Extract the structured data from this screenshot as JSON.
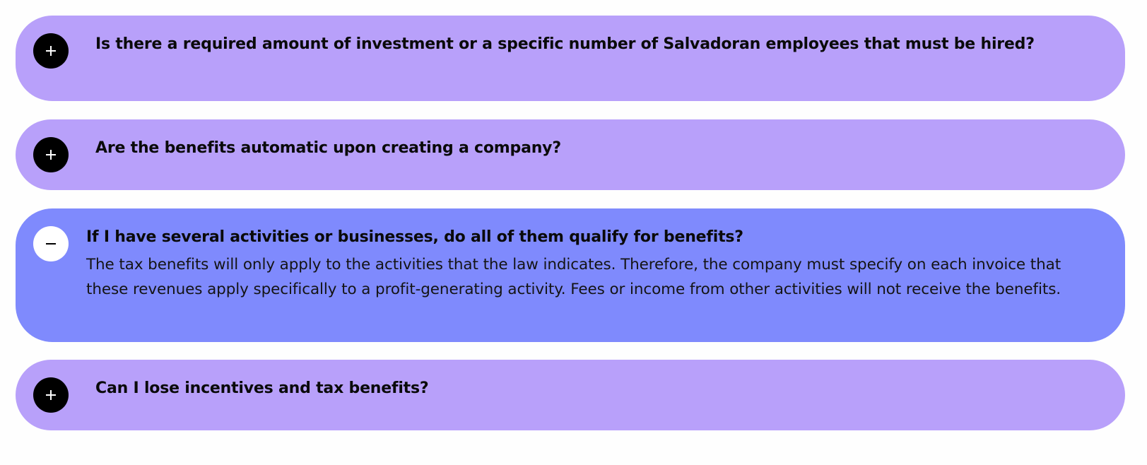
{
  "faq": {
    "items": [
      {
        "question": "Is there a required amount of investment or a specific number of Salvadoran employees that must be hired?",
        "expanded": false,
        "toggle_icon": "plus-icon"
      },
      {
        "question": "Are the benefits automatic upon creating a company?",
        "expanded": false,
        "toggle_icon": "plus-icon"
      },
      {
        "question": "If I have several activities or businesses, do all of them qualify for benefits?",
        "answer": "The tax benefits will only apply to the activities that the law indicates. Therefore, the company must specify on each invoice that these revenues apply specifically to a profit-generating activity. Fees or income from other activities will not receive the benefits.",
        "expanded": true,
        "toggle_icon": "minus-icon"
      },
      {
        "question": "Can I lose incentives and tax benefits?",
        "expanded": false,
        "toggle_icon": "plus-icon"
      }
    ]
  },
  "colors": {
    "collapsed_bg": "#b8a0fa",
    "expanded_bg": "#7f8afd",
    "toggle_collapsed": "#000000",
    "toggle_expanded": "#ffffff"
  }
}
